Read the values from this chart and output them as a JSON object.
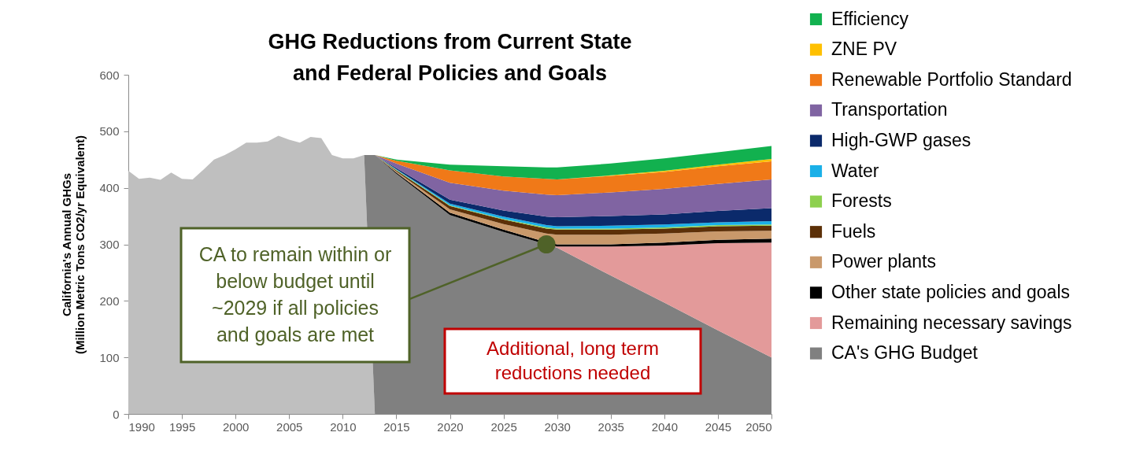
{
  "chart_data": {
    "type": "area",
    "title": "GHG Reductions from Current State and Federal Policies and Goals",
    "ylabel": "California's Annual GHGs (Million Metric Tons CO2/yr Equivalent)",
    "stacked": true,
    "legend": "right",
    "grid": false,
    "xlim": [
      1990,
      2050
    ],
    "xticks": [
      1990,
      1995,
      2000,
      2005,
      2010,
      2015,
      2020,
      2025,
      2030,
      2035,
      2040,
      2045,
      2050
    ],
    "ylim": [
      0,
      600
    ],
    "yticks": [
      0,
      100,
      200,
      300,
      400,
      500,
      600
    ],
    "x": [
      1990,
      1991,
      1992,
      1993,
      1994,
      1995,
      1996,
      1997,
      1998,
      1999,
      2000,
      2001,
      2002,
      2003,
      2004,
      2005,
      2006,
      2007,
      2008,
      2009,
      2010,
      2011,
      2012,
      2013,
      2015,
      2020,
      2025,
      2029,
      2030,
      2035,
      2040,
      2045,
      2050
    ],
    "series": [
      {
        "color": "#bfbfbf",
        "values": [
          430,
          416,
          418,
          414,
          427,
          416,
          415,
          432,
          450,
          458,
          468,
          480,
          480,
          482,
          492,
          485,
          480,
          490,
          488,
          458,
          452,
          452,
          458,
          0,
          null,
          null,
          null,
          null,
          null,
          null,
          null,
          null,
          null
        ]
      },
      {
        "name": "CA's GHG Budget",
        "color": "#808080",
        "values": [
          null,
          null,
          null,
          null,
          null,
          null,
          null,
          null,
          null,
          null,
          null,
          null,
          null,
          null,
          null,
          null,
          null,
          null,
          null,
          null,
          null,
          null,
          0,
          458,
          425,
          352,
          322,
          300,
          294,
          245,
          197,
          148,
          100
        ]
      },
      {
        "name": "Remaining necessary savings",
        "color": "#e39a9a",
        "values": [
          null,
          null,
          null,
          null,
          null,
          null,
          null,
          null,
          null,
          null,
          null,
          null,
          null,
          null,
          null,
          null,
          null,
          null,
          null,
          null,
          null,
          null,
          null,
          0,
          0,
          0,
          0,
          0,
          2,
          51,
          101,
          154,
          203
        ]
      },
      {
        "name": "Other state policies and goals",
        "color": "#000000",
        "values": [
          null,
          null,
          null,
          null,
          null,
          null,
          null,
          null,
          null,
          null,
          null,
          null,
          null,
          null,
          null,
          null,
          null,
          null,
          null,
          null,
          null,
          null,
          null,
          0,
          2,
          4,
          4,
          4,
          4,
          4,
          5,
          6,
          7
        ]
      },
      {
        "name": "Power plants",
        "color": "#c9996b",
        "values": [
          null,
          null,
          null,
          null,
          null,
          null,
          null,
          null,
          null,
          null,
          null,
          null,
          null,
          null,
          null,
          null,
          null,
          null,
          null,
          null,
          null,
          null,
          null,
          0,
          2,
          6,
          10,
          15,
          17,
          17,
          16,
          15,
          14
        ]
      },
      {
        "name": "Fuels",
        "color": "#5c3008",
        "values": [
          null,
          null,
          null,
          null,
          null,
          null,
          null,
          null,
          null,
          null,
          null,
          null,
          null,
          null,
          null,
          null,
          null,
          null,
          null,
          null,
          null,
          null,
          null,
          0,
          2,
          6,
          8,
          9,
          9,
          9,
          9,
          9,
          9
        ]
      },
      {
        "name": "Forests",
        "color": "#8dd04e",
        "values": [
          null,
          null,
          null,
          null,
          null,
          null,
          null,
          null,
          null,
          null,
          null,
          null,
          null,
          null,
          null,
          null,
          null,
          null,
          null,
          null,
          null,
          null,
          null,
          0,
          1,
          1,
          1,
          2,
          2,
          2,
          2,
          2,
          2
        ]
      },
      {
        "name": "Water",
        "color": "#1ab0e8",
        "values": [
          null,
          null,
          null,
          null,
          null,
          null,
          null,
          null,
          null,
          null,
          null,
          null,
          null,
          null,
          null,
          null,
          null,
          null,
          null,
          null,
          null,
          null,
          null,
          0,
          1,
          3,
          4,
          4,
          4,
          5,
          5,
          5,
          6
        ]
      },
      {
        "name": "High-GWP gases",
        "color": "#0b2a6b",
        "values": [
          null,
          null,
          null,
          null,
          null,
          null,
          null,
          null,
          null,
          null,
          null,
          null,
          null,
          null,
          null,
          null,
          null,
          null,
          null,
          null,
          null,
          null,
          null,
          0,
          2,
          7,
          11,
          15,
          16,
          17,
          18,
          20,
          23
        ]
      },
      {
        "name": "Transportation",
        "color": "#8064a2",
        "values": [
          null,
          null,
          null,
          null,
          null,
          null,
          null,
          null,
          null,
          null,
          null,
          null,
          null,
          null,
          null,
          null,
          null,
          null,
          null,
          null,
          null,
          null,
          null,
          0,
          8,
          30,
          35,
          39,
          39,
          42,
          45,
          48,
          51
        ]
      },
      {
        "name": "Renewable Portfolio Standard",
        "color": "#f07918",
        "values": [
          null,
          null,
          null,
          null,
          null,
          null,
          null,
          null,
          null,
          null,
          null,
          null,
          null,
          null,
          null,
          null,
          null,
          null,
          null,
          null,
          null,
          null,
          null,
          0,
          5,
          22,
          25,
          28,
          28,
          29,
          30,
          31,
          32
        ]
      },
      {
        "name": "ZNE PV",
        "color": "#ffc000",
        "values": [
          null,
          null,
          null,
          null,
          null,
          null,
          null,
          null,
          null,
          null,
          null,
          null,
          null,
          null,
          null,
          null,
          null,
          null,
          null,
          null,
          null,
          null,
          null,
          0,
          0,
          0,
          0,
          0,
          0,
          1,
          2,
          3,
          4
        ]
      },
      {
        "name": "Efficiency",
        "color": "#12b14f",
        "values": [
          null,
          null,
          null,
          null,
          null,
          null,
          null,
          null,
          null,
          null,
          null,
          null,
          null,
          null,
          null,
          null,
          null,
          null,
          null,
          null,
          null,
          null,
          null,
          0,
          2,
          10,
          18,
          20,
          21,
          21,
          22,
          22,
          23
        ]
      }
    ],
    "annotations": [
      {
        "text": "CA to remain within or below budget until ~2029 if all policies and goals are met",
        "x": 2029,
        "y": 300
      },
      "Additional, long term reductions needed"
    ]
  }
}
